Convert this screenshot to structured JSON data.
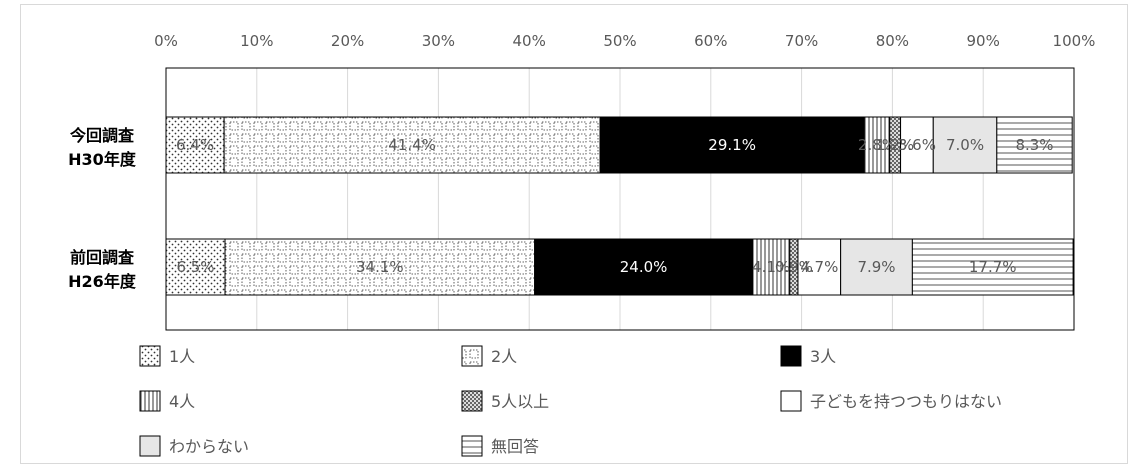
{
  "chart_data": {
    "type": "bar",
    "orientation": "horizontal",
    "stacked": "percent",
    "title": "",
    "xlim": [
      0,
      100
    ],
    "x_ticks": [
      "0%",
      "10%",
      "20%",
      "30%",
      "40%",
      "50%",
      "60%",
      "70%",
      "80%",
      "90%",
      "100%"
    ],
    "categories": [
      {
        "line1": "今回調査",
        "line2": "H30年度"
      },
      {
        "line1": "前回調査",
        "line2": "H26年度"
      }
    ],
    "series": [
      {
        "name": "1人",
        "values": [
          6.4,
          6.5
        ],
        "labels": [
          "6.4%",
          "6.5%"
        ],
        "pattern": "dots"
      },
      {
        "name": "2人",
        "values": [
          41.4,
          34.1
        ],
        "labels": [
          "41.4%",
          "34.1%"
        ],
        "pattern": "squares"
      },
      {
        "name": "3人",
        "values": [
          29.1,
          24.0
        ],
        "labels": [
          "29.1%",
          "24.0%"
        ],
        "pattern": "solid"
      },
      {
        "name": "4人",
        "values": [
          2.8,
          4.1
        ],
        "labels": [
          "2.8%",
          "4.1%"
        ],
        "pattern": "vlines"
      },
      {
        "name": "5人以上",
        "values": [
          1.2,
          0.9
        ],
        "labels": [
          "1.2%",
          "0.9%"
        ],
        "pattern": "checker"
      },
      {
        "name": "子どもを持つつもりはない",
        "values": [
          3.6,
          4.7
        ],
        "labels": [
          "3.6%",
          "4.7%"
        ],
        "pattern": "white"
      },
      {
        "name": "わからない",
        "values": [
          7.0,
          7.9
        ],
        "labels": [
          "7.0%",
          "7.9%"
        ],
        "pattern": "gray"
      },
      {
        "name": "無回答",
        "values": [
          8.3,
          17.7
        ],
        "labels": [
          "8.3%",
          "17.7%"
        ],
        "pattern": "hlines"
      }
    ],
    "legend_position": "bottom",
    "grid": true
  }
}
